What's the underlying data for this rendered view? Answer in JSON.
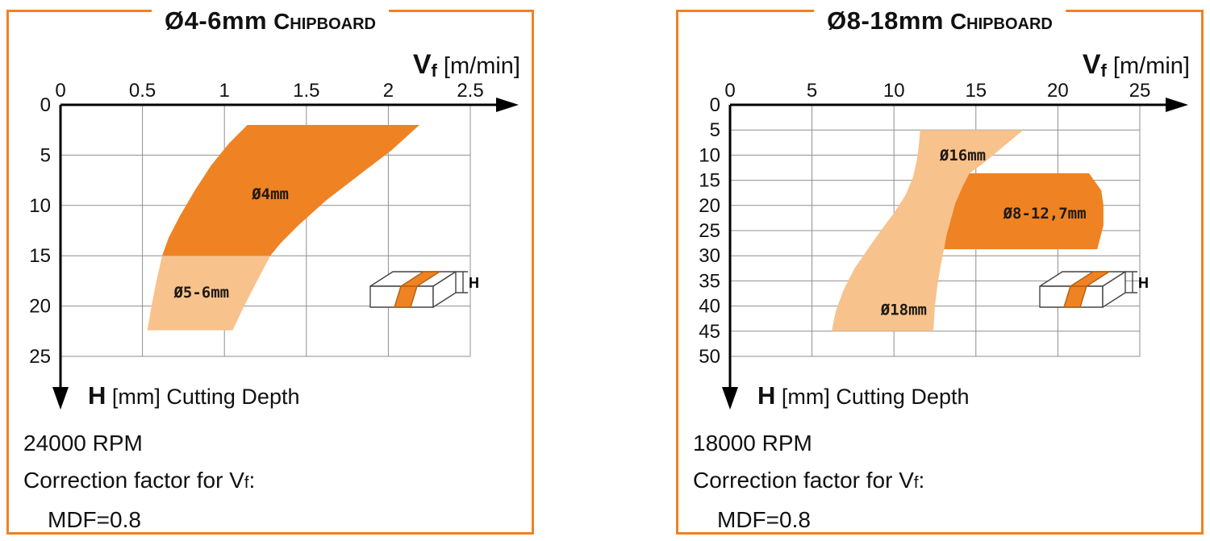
{
  "accent_color": "#ef8222",
  "light_region_color": "#f8c28c",
  "chart_data": [
    {
      "type": "area",
      "title_size": "Ø4-6mm",
      "title_material": "Chipboard",
      "x_axis": {
        "label_main": "V",
        "label_sub": "f",
        "label_unit": " [m/min]",
        "range": [
          0,
          2.5
        ],
        "ticks": [
          0,
          0.5,
          1,
          1.5,
          2,
          2.5
        ]
      },
      "y_axis": {
        "label_main": "H",
        "label_rest": " [mm] Cutting Depth",
        "range": [
          0,
          25
        ],
        "ticks": [
          0,
          5,
          10,
          15,
          20,
          25
        ],
        "direction": "down"
      },
      "grid": true,
      "icon_label": "H",
      "rpm": "24000 RPM",
      "correction_pre": "Correction factor for V",
      "correction_sub": "f",
      "correction_post": ":",
      "mdf": "MDF=0.8",
      "regions": [
        {
          "color": "#f8c28c",
          "labels": [
            {
              "text": "Ø5-6mm",
              "x": 0.86,
              "y": 18.6
            }
          ],
          "points": [
            [
              0.62,
              15
            ],
            [
              1.28,
              15
            ],
            [
              1.2,
              17.5
            ],
            [
              1.12,
              20
            ],
            [
              1.05,
              22.4
            ],
            [
              0.53,
              22.4
            ],
            [
              0.555,
              20
            ],
            [
              0.585,
              17.5
            ]
          ]
        },
        {
          "color": "#ef8222",
          "labels": [
            {
              "text": "Ø4mm",
              "x": 1.28,
              "y": 8.8
            }
          ],
          "points": [
            [
              1.14,
              2
            ],
            [
              2.19,
              2
            ],
            [
              2.02,
              4.5
            ],
            [
              1.82,
              7
            ],
            [
              1.62,
              9.5
            ],
            [
              1.45,
              12
            ],
            [
              1.34,
              13.8
            ],
            [
              1.28,
              15
            ],
            [
              0.62,
              15
            ],
            [
              0.66,
              13.2
            ],
            [
              0.73,
              11
            ],
            [
              0.82,
              8.5
            ],
            [
              0.92,
              6
            ],
            [
              1.03,
              3.8
            ]
          ]
        }
      ]
    },
    {
      "type": "area",
      "title_size": "Ø8-18mm",
      "title_material": "Chipboard",
      "x_axis": {
        "label_main": "V",
        "label_sub": "f",
        "label_unit": " [m/min]",
        "range": [
          0,
          25
        ],
        "ticks": [
          0,
          5,
          10,
          15,
          20,
          25
        ]
      },
      "y_axis": {
        "label_main": "H",
        "label_rest": " [mm] Cutting Depth",
        "range": [
          0,
          50
        ],
        "ticks": [
          0,
          5,
          10,
          15,
          20,
          25,
          30,
          35,
          40,
          45,
          50
        ],
        "direction": "down"
      },
      "grid": true,
      "icon_label": "H",
      "rpm": "18000 RPM",
      "correction_pre": "Correction factor for V",
      "correction_sub": "f",
      "correction_post": ":",
      "mdf": "MDF=0.8",
      "regions": [
        {
          "color": "#f8c28c",
          "labels": [
            {
              "text": "Ø16mm",
              "x": 14.2,
              "y": 9.9
            },
            {
              "text": "Ø18mm",
              "x": 10.6,
              "y": 40.6
            }
          ],
          "points": [
            [
              11.6,
              5
            ],
            [
              17.9,
              5
            ],
            [
              16.6,
              8.5
            ],
            [
              15.5,
              11.5
            ],
            [
              14.6,
              13.6
            ],
            [
              14.15,
              16.5
            ],
            [
              13.75,
              19.5
            ],
            [
              13.45,
              23
            ],
            [
              13.2,
              26
            ],
            [
              13.05,
              28.7
            ],
            [
              12.85,
              32
            ],
            [
              12.65,
              36
            ],
            [
              12.5,
              40
            ],
            [
              12.4,
              45
            ],
            [
              6.2,
              45
            ],
            [
              6.45,
              41
            ],
            [
              6.9,
              37
            ],
            [
              7.6,
              32.5
            ],
            [
              8.4,
              28.7
            ],
            [
              9.2,
              25
            ],
            [
              10.0,
              21.5
            ],
            [
              10.7,
              18
            ],
            [
              11.15,
              14.5
            ],
            [
              11.4,
              11
            ],
            [
              11.52,
              8
            ]
          ]
        },
        {
          "color": "#ef8222",
          "labels": [
            {
              "text": "Ø8-12,7mm",
              "x": 19.2,
              "y": 21.5
            }
          ],
          "points": [
            [
              14.6,
              13.6
            ],
            [
              21.9,
              13.6
            ],
            [
              22.65,
              17
            ],
            [
              22.78,
              20
            ],
            [
              22.78,
              24
            ],
            [
              22.4,
              28.7
            ],
            [
              13.05,
              28.7
            ],
            [
              13.2,
              26
            ],
            [
              13.45,
              23
            ],
            [
              13.75,
              19.5
            ],
            [
              14.15,
              16.5
            ]
          ]
        }
      ]
    }
  ]
}
